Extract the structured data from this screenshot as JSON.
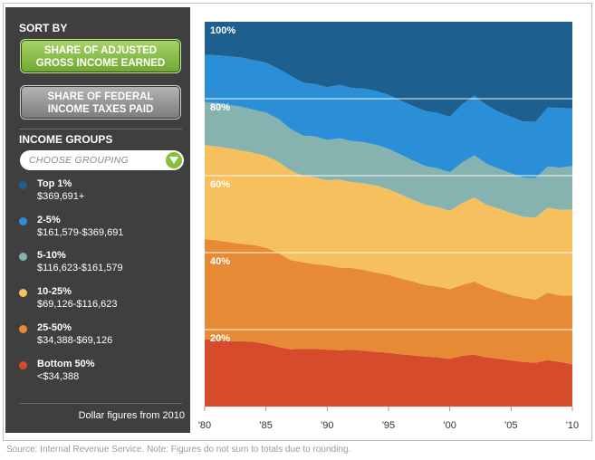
{
  "sidebar": {
    "sort_by": "SORT BY",
    "buttons": [
      {
        "label": "SHARE OF ADJUSTED GROSS INCOME EARNED",
        "line1": "SHARE OF ADJUSTED",
        "line2": "GROSS INCOME EARNED",
        "active": true,
        "color": "#8abe3c"
      },
      {
        "label": "SHARE OF FEDERAL INCOME TAXES PAID",
        "line1": "SHARE OF FEDERAL",
        "line2": "INCOME TAXES PAID",
        "active": false,
        "color": "#9a9a9a"
      }
    ],
    "income_groups_label": "INCOME GROUPS",
    "dropdown_placeholder": "CHOOSE GROUPING",
    "dropdown_icon": "chevron-down-icon",
    "legend": [
      {
        "name": "Top 1%",
        "range": "$369,691+",
        "color": "#1d5f8f"
      },
      {
        "name": "2-5%",
        "range": "$161,579-$369,691",
        "color": "#2a8fd6"
      },
      {
        "name": "5-10%",
        "range": "$116,623-$161,579",
        "color": "#86b3b0"
      },
      {
        "name": "10-25%",
        "range": "$69,126-$116,623",
        "color": "#f7c05e"
      },
      {
        "name": "25-50%",
        "range": "$34,388-$69,126",
        "color": "#e68a35"
      },
      {
        "name": "Bottom 50%",
        "range": "<$34,388",
        "color": "#d64b2c"
      }
    ],
    "footnote": "Dollar figures from 2010"
  },
  "source_note": "Source: Internal Revenue Service. Note: Figures do not sum to totals due to rounding.",
  "chart_data": {
    "type": "area",
    "stacked": true,
    "x": [
      1980,
      1981,
      1982,
      1983,
      1984,
      1985,
      1986,
      1987,
      1988,
      1989,
      1990,
      1991,
      1992,
      1993,
      1994,
      1995,
      1996,
      1997,
      1998,
      1999,
      2000,
      2001,
      2002,
      2003,
      2004,
      2005,
      2006,
      2007,
      2008,
      2009,
      2010
    ],
    "xticks": [
      "'80",
      "'85",
      "'90",
      "'95",
      "'00",
      "'05",
      "'10"
    ],
    "xtick_values": [
      1980,
      1985,
      1990,
      1995,
      2000,
      2005,
      2010
    ],
    "ylim": [
      0,
      100
    ],
    "yticks": [
      "20%",
      "40%",
      "60%",
      "80%",
      "100%"
    ],
    "ytick_values": [
      20,
      40,
      60,
      80,
      100
    ],
    "grid": true,
    "series": [
      {
        "name": "Bottom 50%",
        "color": "#d64b2c",
        "values": [
          17.5,
          17.3,
          17.0,
          17.0,
          16.8,
          16.3,
          15.5,
          14.9,
          15.0,
          15.0,
          14.8,
          14.6,
          14.8,
          14.5,
          14.2,
          14.0,
          13.6,
          13.3,
          13.0,
          12.8,
          12.4,
          13.2,
          13.5,
          12.8,
          12.4,
          12.0,
          11.6,
          11.4,
          12.1,
          11.6,
          11.0
        ]
      },
      {
        "name": "25-50%",
        "color": "#e68a35",
        "values": [
          26.0,
          25.9,
          25.7,
          25.3,
          25.2,
          25.0,
          24.4,
          23.2,
          22.5,
          22.0,
          21.9,
          21.5,
          21.2,
          21.0,
          20.6,
          20.2,
          19.7,
          19.2,
          18.6,
          18.4,
          18.1,
          18.4,
          19.0,
          18.2,
          17.6,
          17.0,
          16.7,
          16.4,
          17.5,
          17.3,
          17.8
        ]
      },
      {
        "name": "10-25%",
        "color": "#f7c05e",
        "values": [
          24.4,
          24.4,
          24.4,
          24.2,
          23.9,
          23.8,
          23.7,
          23.3,
          22.5,
          22.6,
          22.1,
          22.9,
          22.3,
          22.5,
          22.6,
          22.3,
          21.8,
          21.2,
          20.8,
          20.6,
          20.4,
          21.3,
          21.8,
          21.4,
          21.4,
          21.3,
          21.0,
          21.3,
          22.1,
          22.2,
          22.4
        ]
      },
      {
        "name": "5-10%",
        "color": "#86b3b0",
        "values": [
          11.2,
          11.3,
          11.3,
          11.4,
          11.2,
          11.3,
          11.2,
          10.8,
          10.4,
          10.6,
          10.5,
          10.7,
          10.7,
          10.7,
          10.6,
          10.5,
          10.4,
          10.2,
          10.1,
          10.1,
          10.0,
          10.5,
          11.0,
          10.7,
          10.4,
          10.3,
          10.2,
          10.3,
          10.7,
          11.0,
          11.3
        ]
      },
      {
        "name": "2-5%",
        "color": "#2a8fd6",
        "values": [
          12.3,
          12.4,
          12.6,
          12.8,
          12.9,
          13.0,
          13.0,
          13.8,
          13.8,
          13.6,
          13.7,
          13.9,
          13.8,
          13.9,
          14.0,
          14.0,
          14.0,
          14.2,
          14.3,
          14.4,
          14.4,
          15.1,
          15.5,
          15.2,
          14.8,
          14.7,
          14.6,
          14.6,
          15.3,
          15.5,
          15.0
        ]
      },
      {
        "name": "Top 1%",
        "color": "#1d5f8f",
        "values": [
          8.5,
          8.6,
          9.0,
          9.4,
          10.0,
          10.5,
          11.5,
          12.3,
          15.4,
          14.7,
          15.2,
          14.4,
          15.2,
          15.3,
          15.6,
          16.3,
          17.6,
          19.0,
          20.3,
          20.7,
          21.7,
          18.5,
          17.0,
          18.7,
          20.3,
          21.3,
          22.0,
          22.0,
          20.4,
          19.5,
          18.9
        ]
      }
    ]
  }
}
